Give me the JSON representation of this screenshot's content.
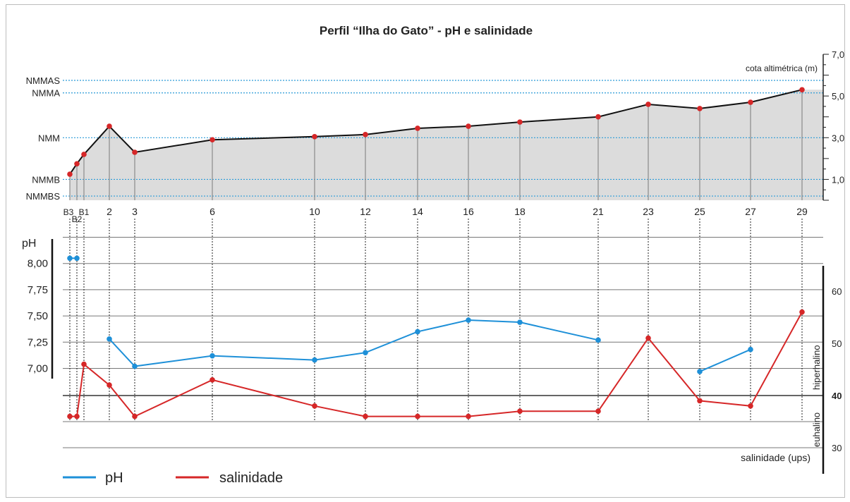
{
  "chart_data": [
    {
      "type": "area",
      "title": "Perfil “Ilha do Gato” - pH e salinidade",
      "ylabel": "cota altimétrica (m)",
      "ylim": [
        0,
        7.0
      ],
      "yticks": [
        "1,0",
        "3,0",
        "5,0",
        "7,0"
      ],
      "stations": [
        "B3",
        "B2",
        "B1",
        "2",
        "3",
        "6",
        "10",
        "12",
        "14",
        "16",
        "18",
        "21",
        "23",
        "25",
        "27",
        "29"
      ],
      "profile_points": [
        {
          "station": "B3",
          "elevation": 1.25
        },
        {
          "station": "B2",
          "elevation": 1.75
        },
        {
          "station": "B1",
          "elevation": 2.2
        },
        {
          "station": "2",
          "elevation": 3.55
        },
        {
          "station": "3",
          "elevation": 2.3
        },
        {
          "station": "6",
          "elevation": 2.9
        },
        {
          "station": "10",
          "elevation": 3.05
        },
        {
          "station": "12",
          "elevation": 3.15
        },
        {
          "station": "14",
          "elevation": 3.45
        },
        {
          "station": "16",
          "elevation": 3.55
        },
        {
          "station": "18",
          "elevation": 3.75
        },
        {
          "station": "21",
          "elevation": 4.0
        },
        {
          "station": "23",
          "elevation": 4.6
        },
        {
          "station": "25",
          "elevation": 4.4
        },
        {
          "station": "27",
          "elevation": 4.7
        },
        {
          "station": "29",
          "elevation": 5.3
        }
      ],
      "reference_levels": [
        {
          "label": "NMMAS",
          "elevation": 5.75
        },
        {
          "label": "NMMA",
          "elevation": 5.15
        },
        {
          "label": "NMM",
          "elevation": 3.0
        },
        {
          "label": "NMMB",
          "elevation": 1.0
        },
        {
          "label": "NMMBS",
          "elevation": 0.2
        }
      ]
    },
    {
      "type": "line",
      "ylabel": "pH",
      "y2label": "salinidade (ups)",
      "yticks": [
        "7,00",
        "7,25",
        "7,50",
        "7,75",
        "8,00"
      ],
      "y2ticks": [
        "30",
        "40",
        "50",
        "60"
      ],
      "y2zones": [
        "hiperhalino",
        "euhalino"
      ],
      "series": [
        {
          "name": "pH",
          "color": "#1e90d8",
          "points": [
            {
              "station": "B3",
              "value": 8.05
            },
            {
              "station": "B2",
              "value": 8.05
            },
            {
              "station": "2",
              "value": 7.28
            },
            {
              "station": "3",
              "value": 7.02
            },
            {
              "station": "6",
              "value": 7.12
            },
            {
              "station": "10",
              "value": 7.08
            },
            {
              "station": "12",
              "value": 7.15
            },
            {
              "station": "14",
              "value": 7.35
            },
            {
              "station": "16",
              "value": 7.46
            },
            {
              "station": "18",
              "value": 7.44
            },
            {
              "station": "21",
              "value": 7.27
            },
            {
              "station": "25",
              "value": 6.97
            },
            {
              "station": "27",
              "value": 7.18
            }
          ]
        },
        {
          "name": "salinidade",
          "color": "#d62728",
          "points": [
            {
              "station": "B3",
              "value": 36
            },
            {
              "station": "B2",
              "value": 36
            },
            {
              "station": "B1",
              "value": 46
            },
            {
              "station": "2",
              "value": 42
            },
            {
              "station": "3",
              "value": 36
            },
            {
              "station": "6",
              "value": 43
            },
            {
              "station": "10",
              "value": 38
            },
            {
              "station": "12",
              "value": 36
            },
            {
              "station": "14",
              "value": 36
            },
            {
              "station": "16",
              "value": 36
            },
            {
              "station": "18",
              "value": 37
            },
            {
              "station": "21",
              "value": 37
            },
            {
              "station": "23",
              "value": 51
            },
            {
              "station": "25",
              "value": 39
            },
            {
              "station": "27",
              "value": 38
            },
            {
              "station": "29",
              "value": 56
            }
          ]
        }
      ],
      "legend": [
        "pH",
        "salinidade"
      ]
    }
  ]
}
